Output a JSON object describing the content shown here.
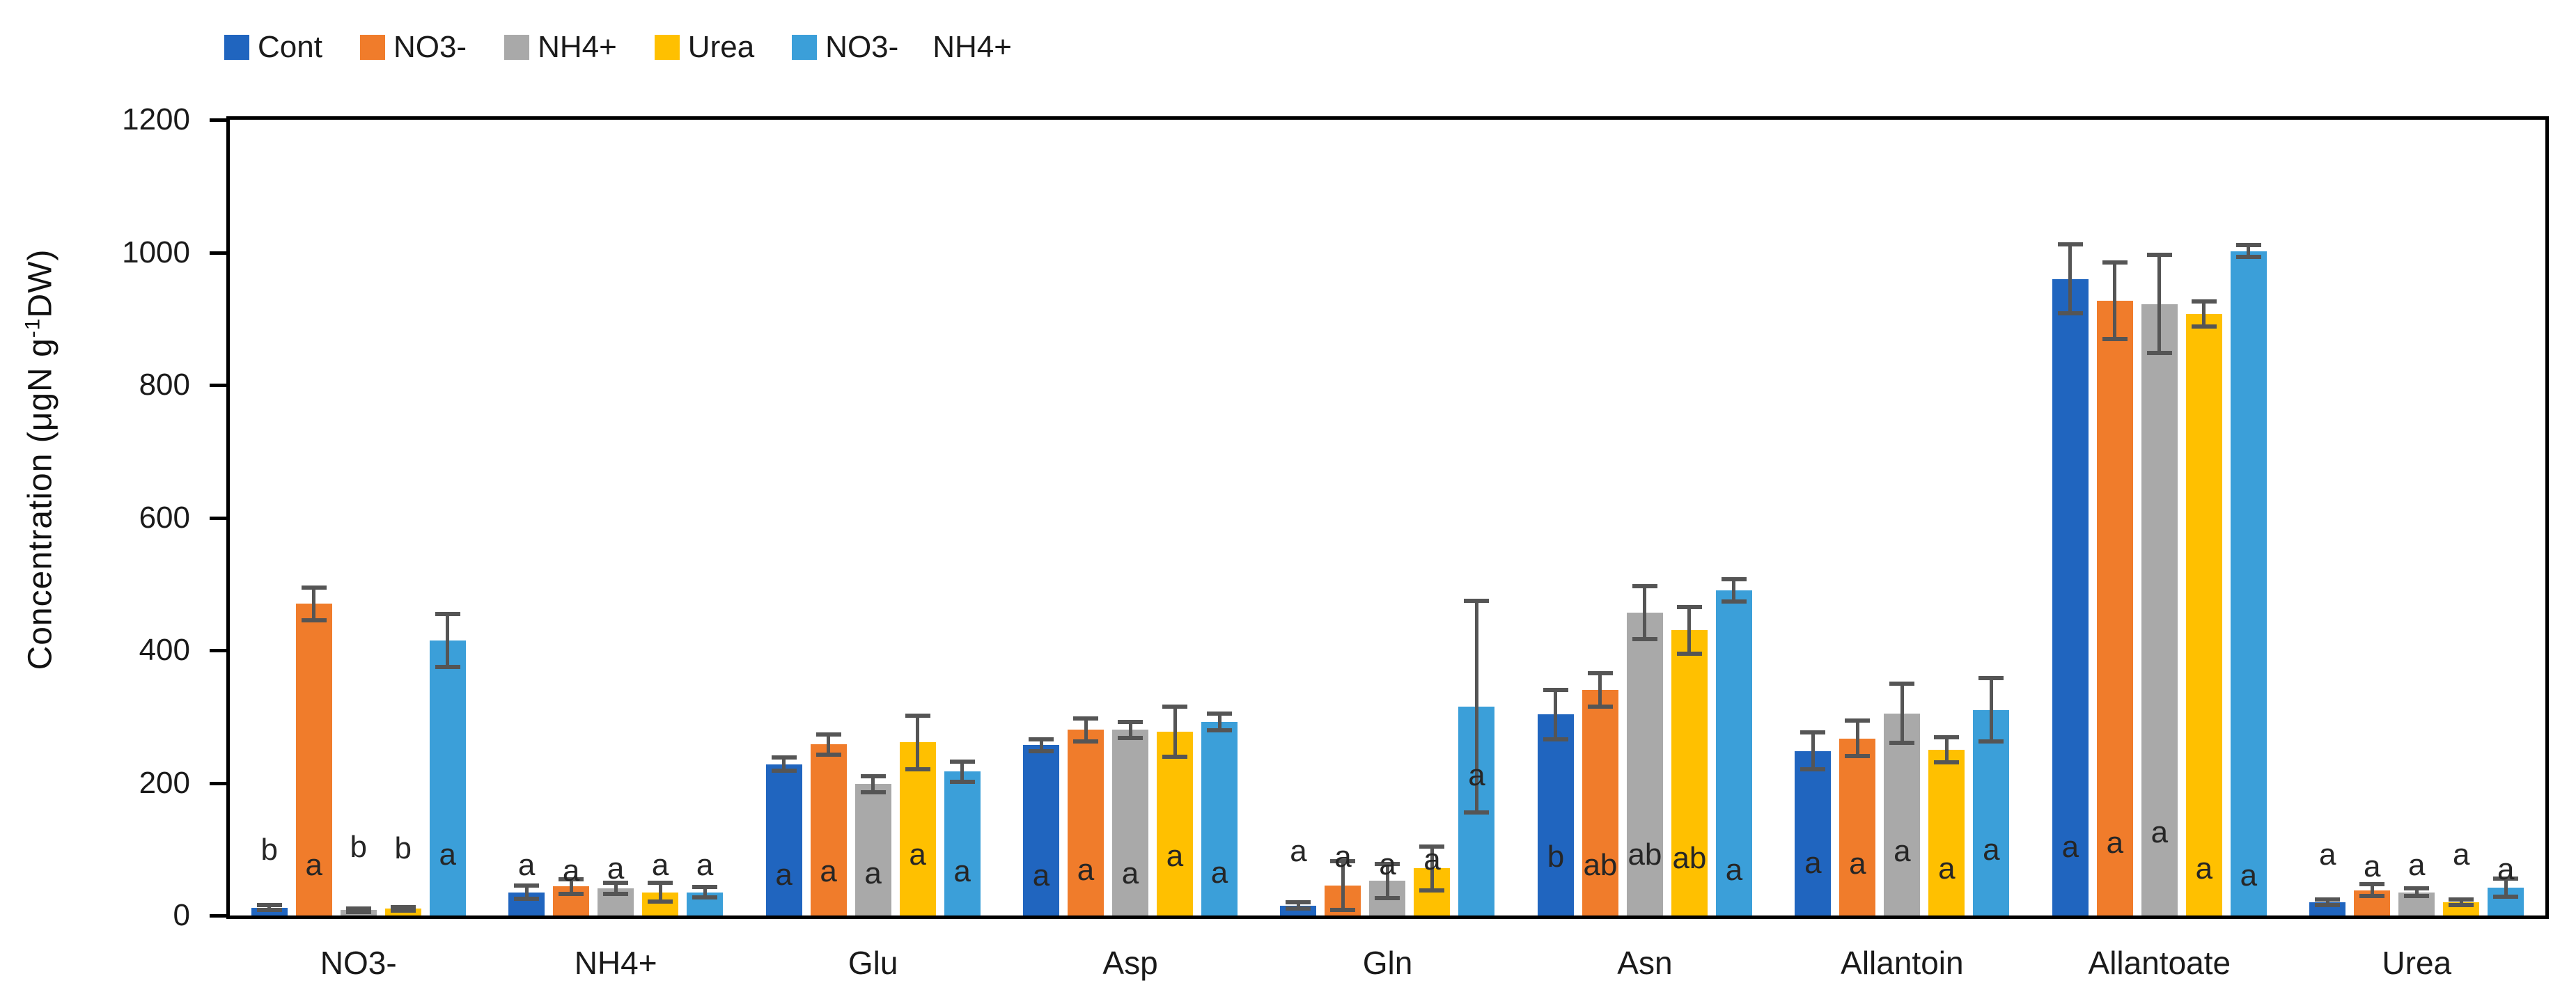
{
  "figure": {
    "background": "#FFFFFF",
    "axis_color": "#000000",
    "error_bar_color": "#555555",
    "text_color": "#262626"
  },
  "y_axis": {
    "label_prefix": "Concentration (μgN g",
    "label_sup": "-1",
    "label_suffix": "DW)",
    "min": 0,
    "max": 1200,
    "tick_step": 200
  },
  "chart_data": {
    "type": "bar",
    "title": "",
    "xlabel": "",
    "ylabel": "Concentration (μgN g-1DW)",
    "ylim": [
      0,
      1200
    ],
    "yticks": [
      0,
      200,
      400,
      600,
      800,
      1000,
      1200
    ],
    "grid": false,
    "legend_position": "top-left",
    "categories": [
      "NO3-",
      "NH4+",
      "Glu",
      "Asp",
      "Gln",
      "Asn",
      "Allantoin",
      "Allantoate",
      "Urea"
    ],
    "series": [
      {
        "name": "Cont",
        "color": "#2065BF",
        "values": [
          12,
          35,
          228,
          257,
          15,
          303,
          248,
          960,
          20
        ],
        "errors": [
          4,
          10,
          10,
          9,
          5,
          37,
          28,
          52,
          4
        ],
        "letters": [
          "b",
          "a",
          "a",
          "a",
          "a",
          "b",
          "a",
          "a",
          "a"
        ]
      },
      {
        "name": "NO3-",
        "color": "#F07C2B",
        "values": [
          470,
          44,
          258,
          280,
          45,
          340,
          267,
          927,
          38
        ],
        "errors": [
          25,
          11,
          15,
          17,
          37,
          25,
          27,
          58,
          9
        ],
        "letters": [
          "a",
          "a",
          "a",
          "a",
          "a",
          "ab",
          "a",
          "a",
          "a"
        ]
      },
      {
        "name": "NH4+",
        "color": "#A9A9A9",
        "values": [
          8,
          41,
          198,
          280,
          52,
          457,
          305,
          922,
          35
        ],
        "errors": [
          3,
          8,
          12,
          12,
          26,
          40,
          45,
          74,
          6
        ],
        "letters": [
          "b",
          "a",
          "a",
          "a",
          "a",
          "ab",
          "a",
          "a",
          "a"
        ]
      },
      {
        "name": "Urea",
        "color": "#FFC000",
        "values": [
          10,
          35,
          261,
          277,
          71,
          430,
          250,
          907,
          20
        ],
        "errors": [
          3,
          14,
          40,
          38,
          33,
          35,
          19,
          19,
          4
        ],
        "letters": [
          "b",
          "a",
          "a",
          "a",
          "a",
          "ab",
          "a",
          "a",
          "a"
        ]
      },
      {
        "name": "NO3-    NH4+",
        "color": "#3B9FD9",
        "values": [
          415,
          35,
          217,
          292,
          315,
          490,
          310,
          1002,
          42
        ],
        "errors": [
          40,
          8,
          15,
          13,
          160,
          17,
          48,
          9,
          14
        ],
        "letters": [
          "a",
          "a",
          "a",
          "a",
          "a",
          "a",
          "a",
          "a",
          "a"
        ]
      }
    ]
  }
}
